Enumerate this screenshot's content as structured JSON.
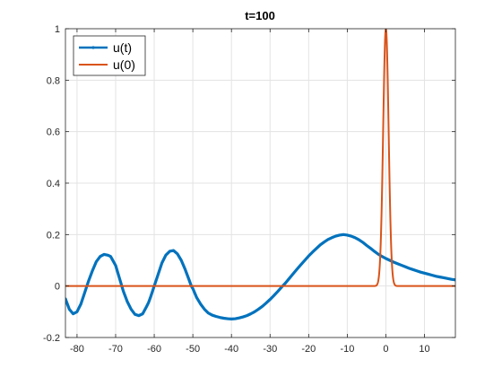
{
  "chart_data": {
    "type": "line",
    "title": "t=100",
    "xlabel": "",
    "ylabel": "",
    "xlim": [
      -83,
      18
    ],
    "ylim": [
      -0.2,
      1
    ],
    "grid": true,
    "legend_position": "top-left",
    "x_ticks": [
      -80,
      -70,
      -60,
      -50,
      -40,
      -30,
      -20,
      -10,
      0,
      10
    ],
    "y_ticks": [
      -0.2,
      0,
      0.2,
      0.4,
      0.6,
      0.8,
      1
    ],
    "x_tick_labels": [
      "-80",
      "-70",
      "-60",
      "-50",
      "-40",
      "-30",
      "-20",
      "-10",
      "0",
      "10"
    ],
    "y_tick_labels": [
      "-0.2",
      "0",
      "0.2",
      "0.4",
      "0.6",
      "0.8",
      "1"
    ],
    "series": [
      {
        "name": "u(t)",
        "color": "#0072BD",
        "marker": "dot",
        "x": [
          -83,
          -82,
          -81,
          -80,
          -79,
          -78,
          -77,
          -76,
          -75,
          -74,
          -73,
          -72,
          -71.3,
          -70,
          -69,
          -68,
          -67,
          -66,
          -65,
          -64,
          -63,
          -62,
          -61.5,
          -61,
          -60,
          -59,
          -58,
          -57,
          -56,
          -55,
          -54,
          -53,
          -52,
          -51,
          -50.4,
          -50,
          -49,
          -48,
          -47,
          -46,
          -45,
          -44,
          -43,
          -42,
          -41,
          -40,
          -39,
          -38,
          -37,
          -36,
          -35,
          -34,
          -33,
          -32,
          -31,
          -30,
          -29,
          -28,
          -27,
          -26,
          -25,
          -24,
          -23,
          -22,
          -21,
          -20,
          -19,
          -18,
          -17,
          -16,
          -15,
          -14,
          -13,
          -12,
          -11,
          -10,
          -9,
          -8,
          -7,
          -6,
          -5,
          -4,
          -3,
          -2,
          -1,
          0,
          1,
          2,
          3,
          4,
          5,
          6,
          7,
          8,
          9,
          10,
          11,
          12,
          13,
          14,
          15,
          16,
          17,
          18
        ],
        "y": [
          -0.05,
          -0.09,
          -0.108,
          -0.1,
          -0.07,
          -0.025,
          0.02,
          0.06,
          0.095,
          0.115,
          0.123,
          0.12,
          0.115,
          0.08,
          0.03,
          -0.02,
          -0.06,
          -0.09,
          -0.11,
          -0.115,
          -0.108,
          -0.08,
          -0.065,
          -0.045,
          0.0,
          0.045,
          0.09,
          0.12,
          0.135,
          0.138,
          0.125,
          0.1,
          0.065,
          0.025,
          0.0,
          -0.01,
          -0.045,
          -0.07,
          -0.09,
          -0.105,
          -0.113,
          -0.118,
          -0.122,
          -0.125,
          -0.127,
          -0.128,
          -0.127,
          -0.124,
          -0.12,
          -0.115,
          -0.108,
          -0.1,
          -0.09,
          -0.079,
          -0.066,
          -0.052,
          -0.037,
          -0.021,
          -0.004,
          0.012,
          0.03,
          0.048,
          0.066,
          0.083,
          0.1,
          0.117,
          0.132,
          0.146,
          0.16,
          0.171,
          0.181,
          0.188,
          0.194,
          0.198,
          0.2,
          0.198,
          0.194,
          0.188,
          0.18,
          0.17,
          0.158,
          0.147,
          0.135,
          0.124,
          0.115,
          0.107,
          0.1,
          0.093,
          0.087,
          0.081,
          0.075,
          0.069,
          0.064,
          0.059,
          0.054,
          0.05,
          0.046,
          0.042,
          0.038,
          0.035,
          0.032,
          0.029,
          0.026,
          0.024
        ]
      },
      {
        "name": "u(0)",
        "color": "#D95319",
        "marker": "none",
        "function": "exp(-x^2)",
        "x_range": [
          -83,
          18
        ]
      }
    ]
  }
}
